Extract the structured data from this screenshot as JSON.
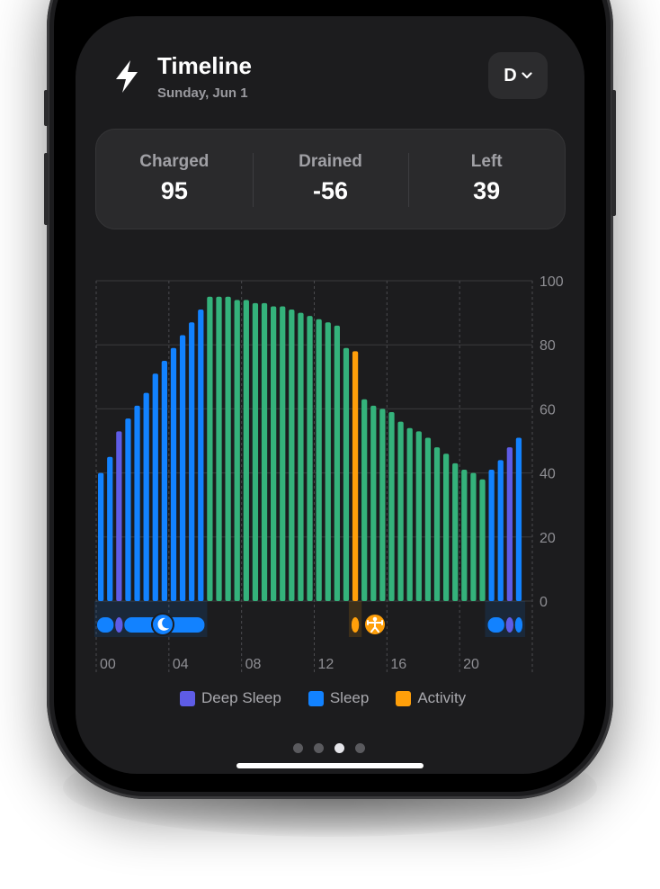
{
  "header": {
    "title": "Timeline",
    "date": "Sunday, Jun 1",
    "range_label": "D",
    "bolt_icon": "lightning-bolt-icon"
  },
  "stats": [
    {
      "label": "Charged",
      "value": "95"
    },
    {
      "label": "Drained",
      "value": "-56"
    },
    {
      "label": "Left",
      "value": "39"
    }
  ],
  "chart_data": {
    "type": "bar",
    "ylim": [
      0,
      100
    ],
    "yticks": [
      "0",
      "20",
      "40",
      "60",
      "80",
      "100"
    ],
    "xticks": [
      "00",
      "04",
      "08",
      "12",
      "16",
      "20"
    ],
    "x_hours": [
      0,
      0.5,
      1,
      1.5,
      2,
      2.5,
      3,
      3.5,
      4,
      4.5,
      5,
      5.5,
      6,
      6.5,
      7,
      7.5,
      8,
      8.5,
      9,
      9.5,
      10,
      10.5,
      11,
      11.5,
      12,
      12.5,
      13,
      13.5,
      14,
      14.5,
      15,
      15.5,
      16,
      16.5,
      17,
      17.5,
      18,
      18.5,
      19,
      19.5,
      20,
      20.5,
      21,
      21.5,
      22,
      22.5,
      23
    ],
    "values": [
      40,
      45,
      53,
      57,
      61,
      65,
      71,
      75,
      79,
      83,
      87,
      91,
      95,
      95,
      95,
      94,
      94,
      93,
      93,
      92,
      92,
      91,
      90,
      89,
      88,
      87,
      86,
      79,
      78,
      63,
      61,
      60,
      59,
      56,
      54,
      53,
      51,
      48,
      46,
      43,
      41,
      40,
      38,
      41,
      44,
      48,
      51
    ],
    "states": [
      "sleep",
      "sleep",
      "deep",
      "sleep",
      "sleep",
      "sleep",
      "sleep",
      "sleep",
      "sleep",
      "sleep",
      "sleep",
      "sleep",
      "none",
      "none",
      "none",
      "none",
      "none",
      "none",
      "none",
      "none",
      "none",
      "none",
      "none",
      "none",
      "none",
      "none",
      "none",
      "none",
      "activity",
      "none",
      "none",
      "none",
      "none",
      "none",
      "none",
      "none",
      "none",
      "none",
      "none",
      "none",
      "none",
      "none",
      "none",
      "sleep",
      "sleep",
      "deep",
      "sleep"
    ],
    "colors": {
      "sleep": "#1282ff",
      "deep": "#5e5ce6",
      "activity": "#ff9f0a",
      "none": "#34b27b"
    },
    "legend": [
      "Deep Sleep",
      "Sleep",
      "Activity"
    ],
    "grid": true
  },
  "legend_items": [
    {
      "label": "Deep Sleep",
      "color": "#5e5ce6"
    },
    {
      "label": "Sleep",
      "color": "#1282ff"
    },
    {
      "label": "Activity",
      "color": "#ff9f0a"
    }
  ],
  "icons": {
    "sleep_marker": "moon-icon",
    "activity_marker": "workout-icon"
  },
  "pager": {
    "count": 4,
    "active_index": 2
  }
}
